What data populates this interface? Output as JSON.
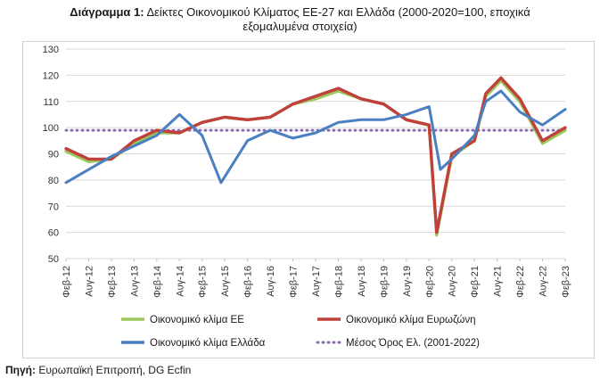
{
  "title": {
    "bold": "Διάγραμμα 1:",
    "line1": " Δείκτες Οικονομικού Κλίματος ΕΕ-27 και Ελλάδα (2000-2020=100, εποχικά",
    "line2": "εξομαλυμένα στοιχεία)"
  },
  "source": {
    "bold": "Πηγή:",
    "text": " Ευρωπαϊκή Επιτροπή, DG Ecfin"
  },
  "chart_data": {
    "type": "line",
    "ylim": [
      50,
      130
    ],
    "yticks": [
      50,
      60,
      70,
      80,
      90,
      100,
      110,
      120,
      130
    ],
    "grid": true,
    "legend_placement": "bottom",
    "x_start": "Φεβ-12",
    "x_end": "Φεβ-23",
    "x_tick_labels": [
      "Φεβ-12",
      "Αυγ-12",
      "Φεβ-13",
      "Αυγ-13",
      "Φεβ-14",
      "Αυγ-14",
      "Φεβ-15",
      "Αυγ-15",
      "Φεβ-16",
      "Αυγ-16",
      "Φεβ-17",
      "Αυγ-17",
      "Φεβ-18",
      "Αυγ-18",
      "Φεβ-19",
      "Αυγ-19",
      "Φεβ-20",
      "Αυγ-20",
      "Φεβ-21",
      "Αυγ-21",
      "Φεβ-22",
      "Αυγ-22",
      "Φεβ-23"
    ],
    "series": [
      {
        "name": "Οικονομικό κλίμα ΕΕ",
        "color": "#9bc85a",
        "style": "solid",
        "points": [
          [
            "Φεβ-12",
            91
          ],
          [
            "Αυγ-12",
            87
          ],
          [
            "Φεβ-13",
            88
          ],
          [
            "Αυγ-13",
            94
          ],
          [
            "Φεβ-14",
            98
          ],
          [
            "Αυγ-14",
            98
          ],
          [
            "Φεβ-15",
            102
          ],
          [
            "Αυγ-15",
            104
          ],
          [
            "Φεβ-16",
            103
          ],
          [
            "Αυγ-16",
            104
          ],
          [
            "Φεβ-17",
            109
          ],
          [
            "Αυγ-17",
            111
          ],
          [
            "Φεβ-18",
            114
          ],
          [
            "Αυγ-18",
            111
          ],
          [
            "Φεβ-19",
            109
          ],
          [
            "Αυγ-19",
            103
          ],
          [
            "Φεβ-20",
            101
          ],
          [
            "Απρ-20",
            59
          ],
          [
            "Αυγ-20",
            89
          ],
          [
            "Φεβ-21",
            95
          ],
          [
            "Μαϊ-21",
            112
          ],
          [
            "Σεπ-21",
            118
          ],
          [
            "Φεβ-22",
            110
          ],
          [
            "Αυγ-22",
            94
          ],
          [
            "Φεβ-23",
            99
          ]
        ]
      },
      {
        "name": "Οικονομικό κλίμα Ευρωζώνη",
        "color": "#c0413b",
        "style": "solid",
        "points": [
          [
            "Φεβ-12",
            92
          ],
          [
            "Αυγ-12",
            88
          ],
          [
            "Φεβ-13",
            88
          ],
          [
            "Αυγ-13",
            95
          ],
          [
            "Φεβ-14",
            99
          ],
          [
            "Αυγ-14",
            98
          ],
          [
            "Φεβ-15",
            102
          ],
          [
            "Αυγ-15",
            104
          ],
          [
            "Φεβ-16",
            103
          ],
          [
            "Αυγ-16",
            104
          ],
          [
            "Φεβ-17",
            109
          ],
          [
            "Αυγ-17",
            112
          ],
          [
            "Φεβ-18",
            115
          ],
          [
            "Αυγ-18",
            111
          ],
          [
            "Φεβ-19",
            109
          ],
          [
            "Αυγ-19",
            103
          ],
          [
            "Φεβ-20",
            101
          ],
          [
            "Απρ-20",
            60
          ],
          [
            "Αυγ-20",
            90
          ],
          [
            "Φεβ-21",
            95
          ],
          [
            "Μαϊ-21",
            113
          ],
          [
            "Σεπ-21",
            119
          ],
          [
            "Φεβ-22",
            111
          ],
          [
            "Αυγ-22",
            95
          ],
          [
            "Φεβ-23",
            100
          ]
        ]
      },
      {
        "name": "Οικονομικό κλίμα Ελλάδα",
        "color": "#4a7fc1",
        "style": "solid",
        "points": [
          [
            "Φεβ-12",
            79
          ],
          [
            "Αυγ-12",
            84
          ],
          [
            "Φεβ-13",
            89
          ],
          [
            "Αυγ-13",
            93
          ],
          [
            "Φεβ-14",
            97
          ],
          [
            "Αυγ-14",
            105
          ],
          [
            "Φεβ-15",
            97
          ],
          [
            "Ιουλ-15",
            79
          ],
          [
            "Φεβ-16",
            95
          ],
          [
            "Αυγ-16",
            99
          ],
          [
            "Φεβ-17",
            96
          ],
          [
            "Αυγ-17",
            98
          ],
          [
            "Φεβ-18",
            102
          ],
          [
            "Αυγ-18",
            103
          ],
          [
            "Φεβ-19",
            103
          ],
          [
            "Αυγ-19",
            105
          ],
          [
            "Φεβ-20",
            108
          ],
          [
            "Μαϊ-20",
            84
          ],
          [
            "Αυγ-20",
            88
          ],
          [
            "Φεβ-21",
            97
          ],
          [
            "Μαϊ-21",
            110
          ],
          [
            "Σεπ-21",
            114
          ],
          [
            "Φεβ-22",
            106
          ],
          [
            "Αυγ-22",
            101
          ],
          [
            "Φεβ-23",
            107
          ]
        ]
      },
      {
        "name": "Μέσος Όρος Ελ. (2001-2022)",
        "color": "#8c6bb5",
        "style": "dotted",
        "value": 99
      }
    ]
  }
}
